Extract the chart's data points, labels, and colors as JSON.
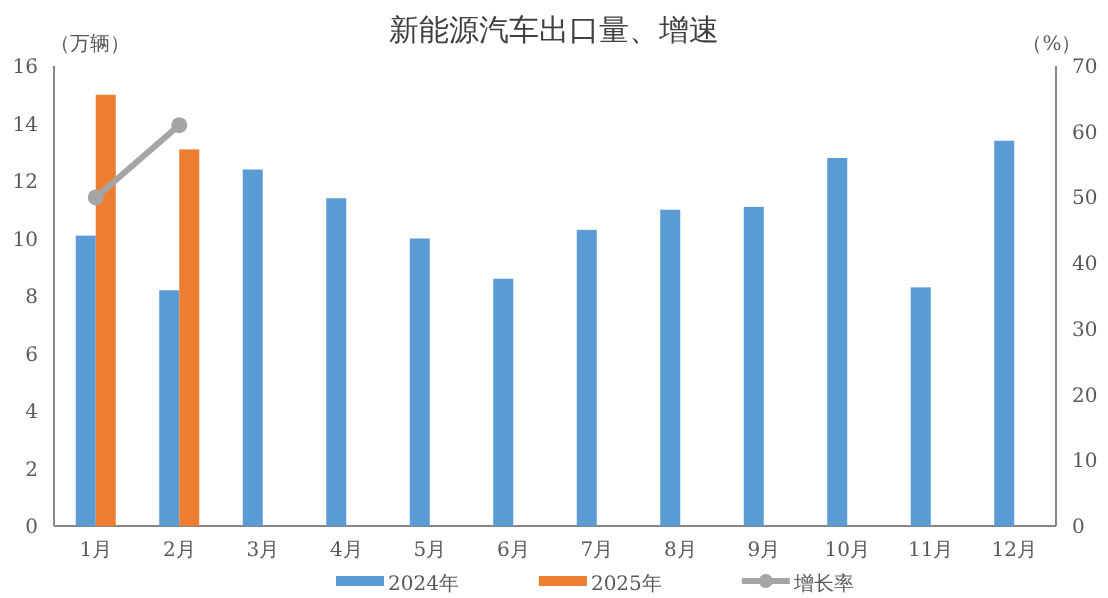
{
  "chart_data": {
    "type": "bar",
    "title": "新能源汽车出口量、增速",
    "ylabel": "（万辆）",
    "y2label": "（%）",
    "categories": [
      "1月",
      "2月",
      "3月",
      "4月",
      "5月",
      "6月",
      "7月",
      "8月",
      "9月",
      "10月",
      "11月",
      "12月"
    ],
    "series": [
      {
        "name": "2024年",
        "color": "#5b9bd5",
        "values": [
          10.1,
          8.2,
          12.4,
          11.4,
          10.0,
          8.6,
          10.3,
          11.0,
          11.1,
          12.8,
          8.3,
          13.4
        ]
      },
      {
        "name": "2025年",
        "color": "#ed7d31",
        "values": [
          15.0,
          13.1,
          null,
          null,
          null,
          null,
          null,
          null,
          null,
          null,
          null,
          null
        ]
      },
      {
        "name": "增长率",
        "type": "line",
        "axis": "y2",
        "color": "#a5a5a5",
        "marker": "circle",
        "values": [
          50,
          61,
          null,
          null,
          null,
          null,
          null,
          null,
          null,
          null,
          null,
          null
        ]
      }
    ],
    "ylim": [
      0,
      16
    ],
    "yticks": [
      0,
      2,
      4,
      6,
      8,
      10,
      12,
      14,
      16
    ],
    "y2lim": [
      0,
      70
    ],
    "y2ticks": [
      0,
      10,
      20,
      30,
      40,
      50,
      60,
      70
    ],
    "grid": false,
    "legend": "bottom"
  }
}
